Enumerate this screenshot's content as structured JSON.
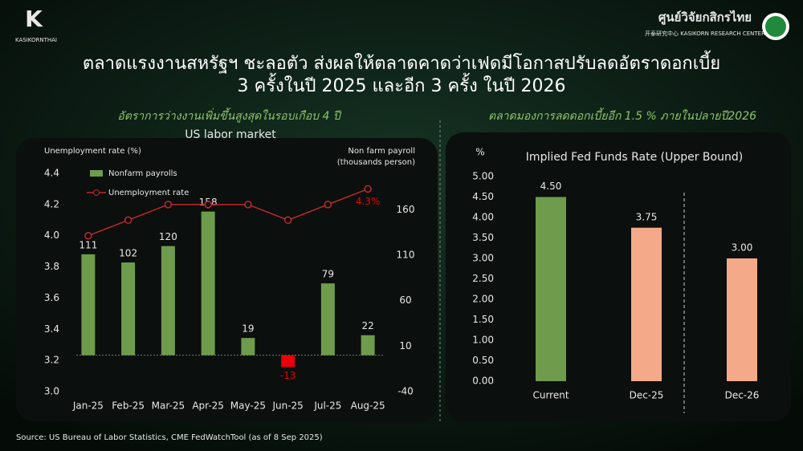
{
  "header": {
    "title_lines": [
      "ตลาดแรงงานสหรัฐฯ ชะลอตัว ส่งผลให้ตลาดคาดว่าเฟดมีโอกาสปรับลดอัตราดอกเบี้ย",
      "3 ครั้งในปี 2025 และอีก 3 ครั้ง ในปี 2026"
    ],
    "left_logo": "KASIKORNTHAI",
    "right_logo": "ศูนย์วิจัยกสิกรไทย",
    "right_logo_sub": "开泰研究中心 KASIKORN RESEARCH CENTER"
  },
  "source": "Source: US Bureau of Labor Statistics, CME FedWatchTool (as of 8 Sep 2025)",
  "chart_data": [
    {
      "type": "combo",
      "subtitle": "อัตราการว่างงานเพิ่มขึ้นสูงสุดในรอบเกือบ 4 ปี",
      "title": "US labor market",
      "y_label": "Unemployment rate (%)",
      "y2_label": [
        "Non farm payroll",
        "(thousands person)"
      ],
      "categories": [
        "Jan-25",
        "Feb-25",
        "Mar-25",
        "Apr-25",
        "May-25",
        "Jun-25",
        "Jul-25",
        "Aug-25"
      ],
      "ylim": [
        3.0,
        4.4
      ],
      "yticks": [
        {
          "value": 3.0,
          "label": "3.0"
        },
        3.2,
        3.4,
        3.6,
        3.8,
        {
          "value": 4.0,
          "label": "4.0"
        },
        4.2,
        4.4
      ],
      "y2lim": [
        -40,
        200
      ],
      "y2ticks": [
        -40,
        10,
        60,
        110,
        160
      ],
      "negative_color": "#e8000b",
      "series": [
        {
          "name": "Nonfarm payrolls",
          "type": "bar",
          "axis": "y2",
          "color": "#6e9c4c",
          "values": [
            111,
            102,
            120,
            158,
            19,
            -13,
            79,
            22
          ]
        },
        {
          "name": "Unemployment rate",
          "type": "line",
          "color": "#c0282d",
          "values": [
            4.0,
            4.1,
            4.2,
            4.2,
            4.2,
            4.1,
            4.2,
            4.3
          ],
          "value_labels": [
            null,
            null,
            null,
            null,
            null,
            null,
            null,
            "4.3%"
          ]
        }
      ]
    },
    {
      "type": "bar",
      "subtitle": "ตลาดมองการลดดอกเบี้ยอีก 1.5 % ภายในปลายปี2026",
      "title": "Implied Fed Funds Rate (Upper Bound)",
      "y_label": "%",
      "categories": [
        "Current",
        "Dec-25",
        "Dec-26"
      ],
      "values": [
        4.5,
        3.75,
        3.0
      ],
      "value_labels": [
        "4.50",
        "3.75",
        "3.00"
      ],
      "colors": [
        "#6e9c4c",
        "#f4a989",
        "#f4a989"
      ],
      "ylim": [
        0,
        5
      ],
      "yticks": [
        {
          "value": 0,
          "label": "0.00"
        },
        {
          "value": 0.5,
          "label": "0.50"
        },
        {
          "value": 1,
          "label": "1.00"
        },
        {
          "value": 1.5,
          "label": "1.50"
        },
        {
          "value": 2,
          "label": "2.00"
        },
        {
          "value": 2.5,
          "label": "2.50"
        },
        {
          "value": 3,
          "label": "3.00"
        },
        {
          "value": 3.5,
          "label": "3.50"
        },
        {
          "value": 4,
          "label": "4.00"
        },
        {
          "value": 4.5,
          "label": "4.50"
        },
        {
          "value": 5,
          "label": "5.00"
        }
      ]
    }
  ]
}
